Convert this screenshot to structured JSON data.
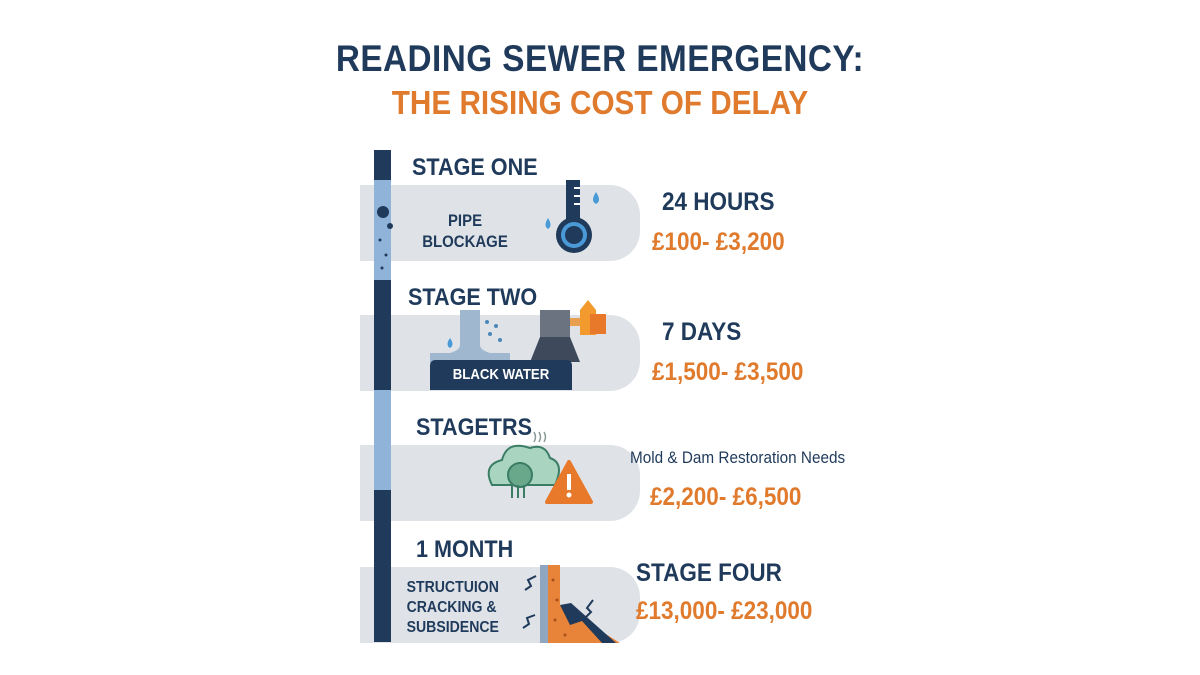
{
  "title": {
    "line1": "READING SEWER EMERGENCY:",
    "line2": "THE RISING COST OF DELAY"
  },
  "colors": {
    "navy": "#1f3a5a",
    "orange": "#e07a2c",
    "light_blue": "#8fb3d9",
    "panel": "#dfe3e8"
  },
  "stages": [
    {
      "heading": "STAGE ONE",
      "panel_text": "PIPE\nBLOCKAGE",
      "time": "24 HOURS",
      "cost": "£100- £3,200",
      "icon": "pipe-blockage-icon"
    },
    {
      "heading": "STAGE TWO",
      "panel_text": "BLACK WATER",
      "time": "7 DAYS",
      "cost": "£1,500- £3,500",
      "icon": "flooding-icon"
    },
    {
      "heading": "STAGETRS",
      "panel_text": "",
      "time": "Mold & Dam Restoration Needs",
      "cost": "£2,200- £6,500",
      "icon": "mold-warning-icon"
    },
    {
      "heading": "1 MONTH",
      "panel_text": "STRUCTUION\nCRACKING &\nSUBSIDENCE",
      "time": "STAGE FOUR",
      "cost": "£13,000- £23,000",
      "icon": "cracked-wall-icon"
    }
  ]
}
